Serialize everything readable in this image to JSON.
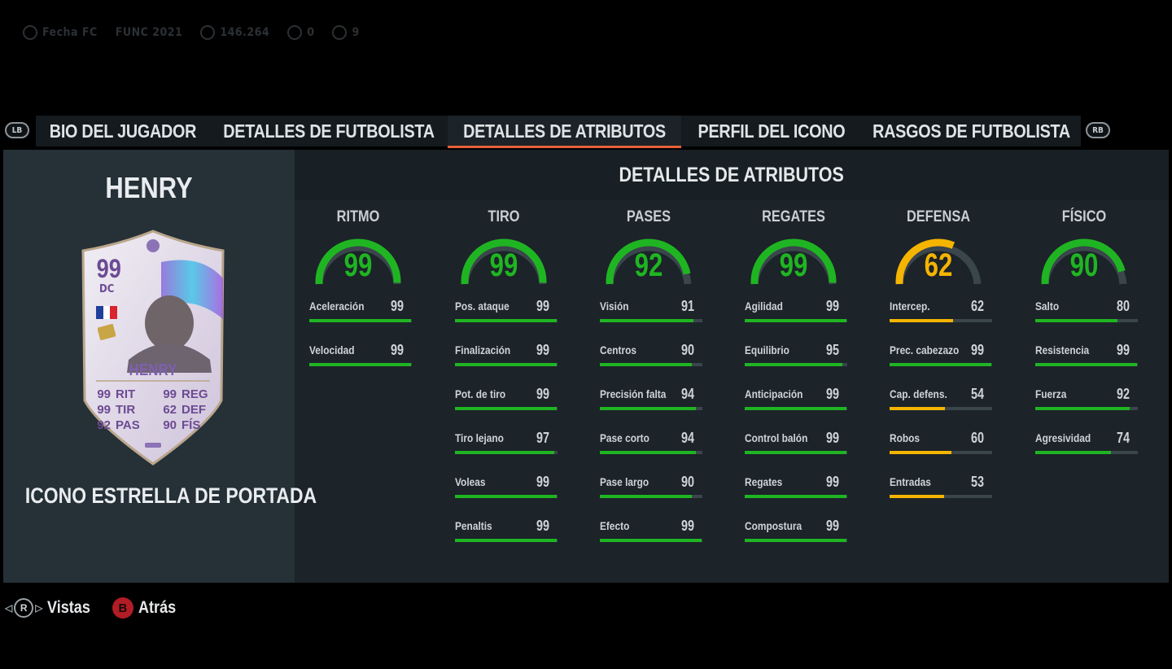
{
  "topbar": {
    "game": "Fecha FC",
    "event": "FUNC 2021",
    "coins": "146.264",
    "points": "0",
    "trophies": "9"
  },
  "bumpers": {
    "left": "LB",
    "right": "RB"
  },
  "tabs": [
    {
      "label": "BIO DEL JUGADOR",
      "active": false
    },
    {
      "label": "DETALLES DE FUTBOLISTA",
      "active": false
    },
    {
      "label": "DETALLES DE ATRIBUTOS",
      "active": true
    },
    {
      "label": "PERFIL DEL ICONO",
      "active": false
    },
    {
      "label": "RASGOS DE FUTBOLISTA",
      "active": false
    }
  ],
  "player": {
    "name": "HENRY",
    "card_type": "ICONO ESTRELLA DE PORTADA",
    "card": {
      "rating": "99",
      "position": "DC",
      "name": "HENRY",
      "stats": [
        {
          "value": "99",
          "label": "RIT"
        },
        {
          "value": "99",
          "label": "REG"
        },
        {
          "value": "99",
          "label": "TIR"
        },
        {
          "value": "62",
          "label": "DEF"
        },
        {
          "value": "92",
          "label": "PAS"
        },
        {
          "value": "90",
          "label": "FÍS"
        }
      ]
    }
  },
  "section_title": "DETALLES DE ATRIBUTOS",
  "colors": {
    "green": "#1fb522",
    "yellow": "#f4b400",
    "track": "#3a454c",
    "accent": "#e8603a"
  },
  "groups": [
    {
      "title": "RITMO",
      "value": 99,
      "color": "green",
      "attrs": [
        {
          "name": "Aceleración",
          "value": 99
        },
        {
          "name": "Velocidad",
          "value": 99
        }
      ]
    },
    {
      "title": "TIRO",
      "value": 99,
      "color": "green",
      "attrs": [
        {
          "name": "Pos. ataque",
          "value": 99
        },
        {
          "name": "Finalización",
          "value": 99
        },
        {
          "name": "Pot. de tiro",
          "value": 99
        },
        {
          "name": "Tiro lejano",
          "value": 97
        },
        {
          "name": "Voleas",
          "value": 99
        },
        {
          "name": "Penaltis",
          "value": 99
        }
      ]
    },
    {
      "title": "PASES",
      "value": 92,
      "color": "green",
      "attrs": [
        {
          "name": "Visión",
          "value": 91
        },
        {
          "name": "Centros",
          "value": 90
        },
        {
          "name": "Precisión falta",
          "value": 94
        },
        {
          "name": "Pase corto",
          "value": 94
        },
        {
          "name": "Pase largo",
          "value": 90
        },
        {
          "name": "Efecto",
          "value": 99
        }
      ]
    },
    {
      "title": "REGATES",
      "value": 99,
      "color": "green",
      "attrs": [
        {
          "name": "Agilidad",
          "value": 99
        },
        {
          "name": "Equilibrio",
          "value": 95
        },
        {
          "name": "Anticipación",
          "value": 99
        },
        {
          "name": "Control balón",
          "value": 99
        },
        {
          "name": "Regates",
          "value": 99
        },
        {
          "name": "Compostura",
          "value": 99
        }
      ]
    },
    {
      "title": "DEFENSA",
      "value": 62,
      "color": "yellow",
      "attrs": [
        {
          "name": "Intercep.",
          "value": 62
        },
        {
          "name": "Prec. cabezazo",
          "value": 99
        },
        {
          "name": "Cap. defens.",
          "value": 54
        },
        {
          "name": "Robos",
          "value": 60
        },
        {
          "name": "Entradas",
          "value": 53
        }
      ]
    },
    {
      "title": "FÍSICO",
      "value": 90,
      "color": "green",
      "attrs": [
        {
          "name": "Salto",
          "value": 80
        },
        {
          "name": "Resistencia",
          "value": 99
        },
        {
          "name": "Fuerza",
          "value": 92
        },
        {
          "name": "Agresividad",
          "value": 74
        }
      ]
    }
  ],
  "hints": [
    {
      "button": "R",
      "label": "Vistas"
    },
    {
      "button": "B",
      "label": "Atrás"
    }
  ]
}
